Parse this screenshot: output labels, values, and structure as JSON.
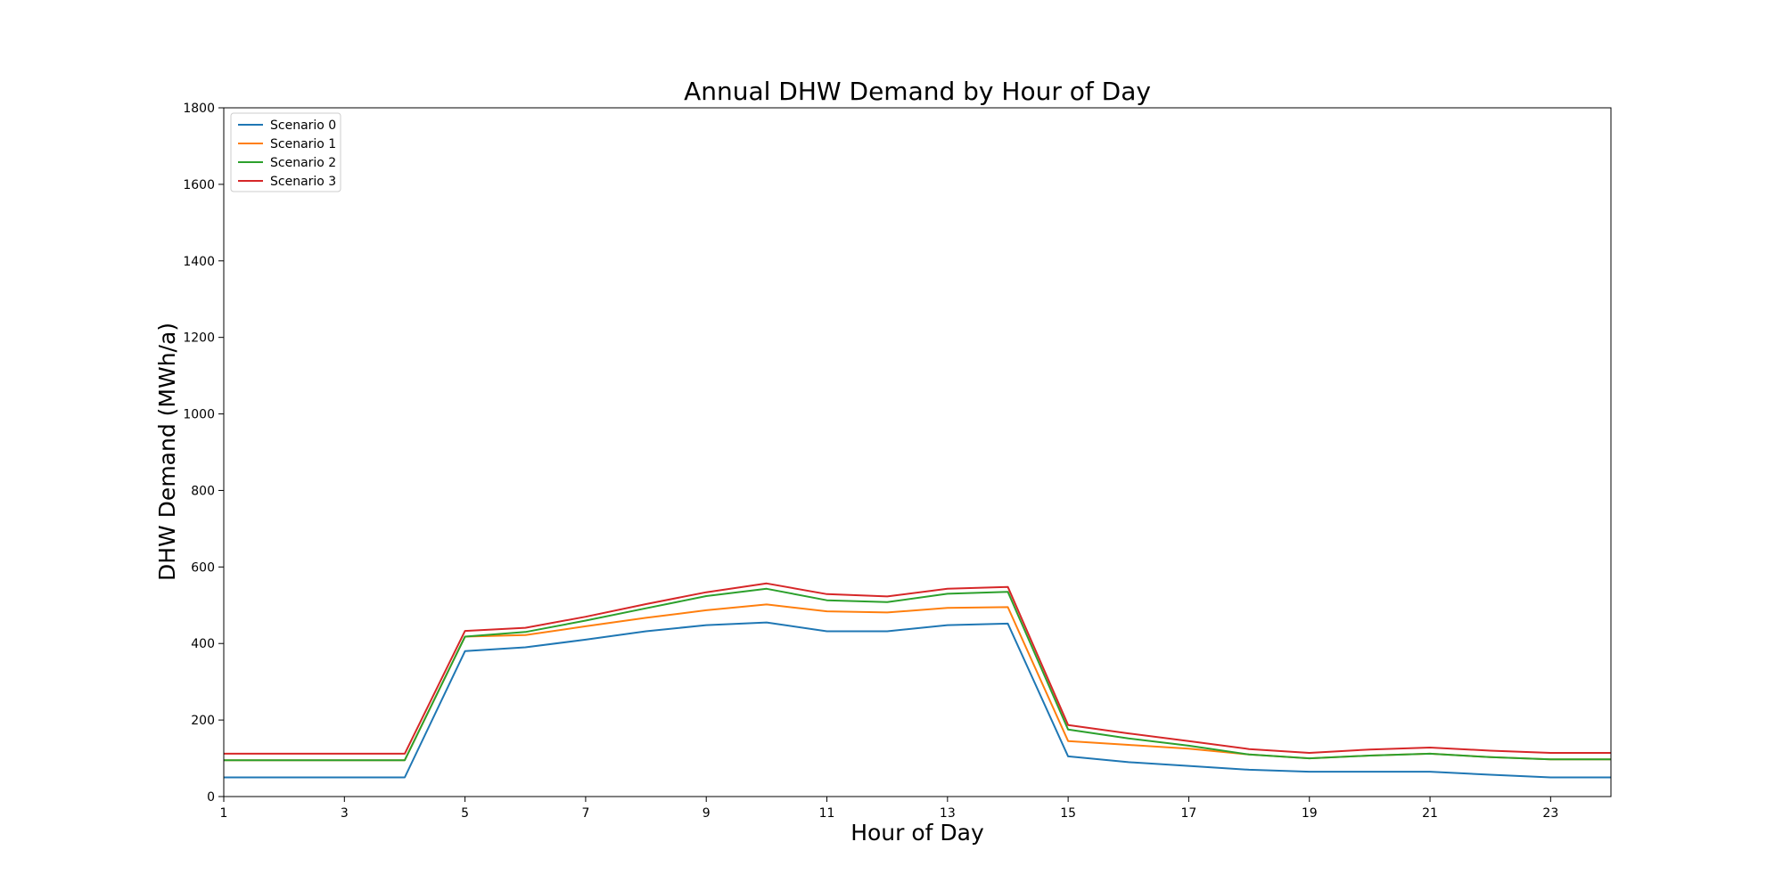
{
  "chart_data": {
    "type": "line",
    "title": "Annual DHW Demand by Hour of Day",
    "xlabel": "Hour of Day",
    "ylabel": "DHW Demand (MWh/a)",
    "xlim": [
      1,
      24
    ],
    "ylim": [
      0,
      1800
    ],
    "xticks": [
      1,
      3,
      5,
      7,
      9,
      11,
      13,
      15,
      17,
      19,
      21,
      23
    ],
    "yticks": [
      0,
      200,
      400,
      600,
      800,
      1000,
      1200,
      1400,
      1600,
      1800
    ],
    "grid": false,
    "legend_position": "top-left",
    "x": [
      1,
      2,
      3,
      4,
      5,
      6,
      7,
      8,
      9,
      10,
      11,
      12,
      13,
      14,
      15,
      16,
      17,
      18,
      19,
      20,
      21,
      22,
      23,
      24
    ],
    "series": [
      {
        "name": "Scenario 0",
        "color": "#1f77b4",
        "values": [
          50,
          50,
          50,
          50,
          380,
          390,
          410,
          432,
          448,
          455,
          432,
          432,
          448,
          452,
          105,
          90,
          80,
          70,
          65,
          65,
          65,
          57,
          50,
          50
        ]
      },
      {
        "name": "Scenario 1",
        "color": "#ff7f0e",
        "values": [
          95,
          95,
          95,
          95,
          418,
          422,
          445,
          467,
          487,
          502,
          484,
          481,
          493,
          495,
          145,
          135,
          125,
          110,
          100,
          107,
          112,
          103,
          97,
          97
        ]
      },
      {
        "name": "Scenario 2",
        "color": "#2ca02c",
        "values": [
          95,
          95,
          95,
          95,
          418,
          430,
          460,
          492,
          524,
          543,
          513,
          508,
          530,
          535,
          175,
          152,
          133,
          110,
          100,
          107,
          112,
          103,
          97,
          97
        ]
      },
      {
        "name": "Scenario 3",
        "color": "#d62728",
        "values": [
          112,
          112,
          112,
          112,
          433,
          441,
          470,
          503,
          534,
          557,
          529,
          523,
          543,
          548,
          187,
          165,
          145,
          124,
          114,
          123,
          128,
          120,
          114,
          114
        ]
      }
    ]
  }
}
